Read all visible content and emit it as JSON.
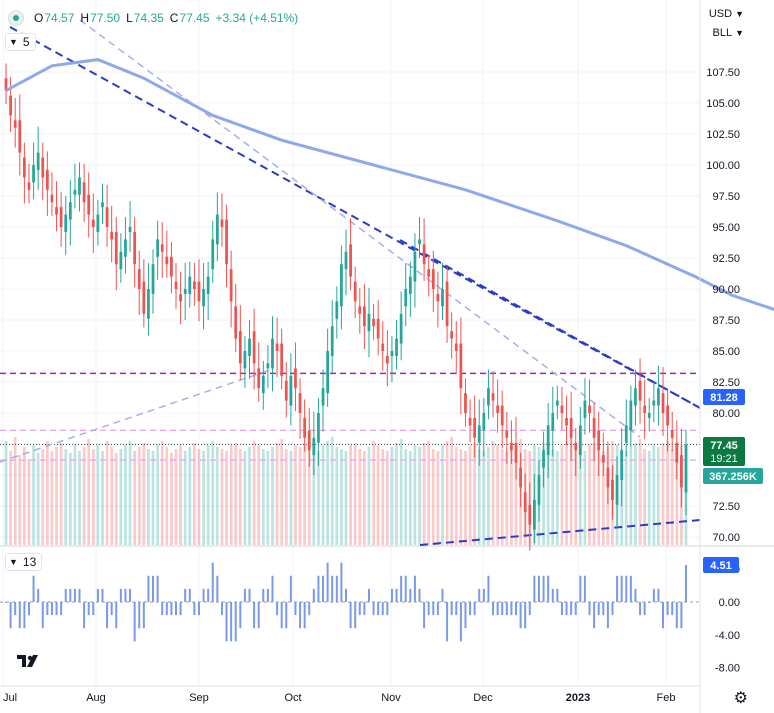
{
  "header": {
    "open_label": "O",
    "open": "74.57",
    "high_label": "H",
    "high": "77.50",
    "low_label": "L",
    "low": "74.35",
    "close_label": "C",
    "close": "77.45",
    "change": "+3.34 (+4.51%)"
  },
  "currency": "USD",
  "unit": "BLL",
  "main_indicator": {
    "label": "5"
  },
  "lower_indicator": {
    "label": "13"
  },
  "price_badges": {
    "last_price": "77.45",
    "countdown": "19:21",
    "volume": "367.256K",
    "ma_value": "81.28",
    "indicator_value": "4.51"
  },
  "colors": {
    "up": "#26a69a",
    "down": "#ef5350",
    "ma": "#8fa8ec",
    "trendline": "#2b3cc6",
    "hline": "#9c27b0",
    "last_price": "#0a7a42"
  },
  "icons": [
    "chevron-down-icon",
    "gear-icon",
    "tradingview-logo-icon"
  ],
  "chart_data": [
    {
      "type": "candlestick",
      "y_ticks": [
        "70.00",
        "72.50",
        "75.00",
        "77.50",
        "80.00",
        "82.50",
        "85.00",
        "87.50",
        "90.00",
        "92.50",
        "95.00",
        "97.50",
        "100.00",
        "102.50",
        "105.00",
        "107.50"
      ],
      "x_ticks": [
        "Jul",
        "Aug",
        "Sep",
        "Oct",
        "Nov",
        "Dec",
        "2023",
        "Feb"
      ],
      "ylim": [
        69.5,
        111
      ],
      "close_series": [
        106,
        104,
        103,
        101,
        99,
        98,
        100,
        101,
        99,
        98,
        97,
        96,
        95,
        96,
        97,
        98,
        99,
        97,
        96,
        95,
        96,
        97,
        95,
        94,
        92,
        93,
        94,
        95,
        92,
        90,
        88,
        90,
        92,
        94,
        93,
        92,
        91,
        90,
        89,
        90,
        91,
        90,
        89,
        90,
        91,
        94,
        96,
        95,
        92,
        89,
        86,
        84,
        85,
        86,
        84,
        82,
        83,
        84,
        86,
        85,
        83,
        81,
        83,
        82,
        80,
        78,
        77,
        78,
        80,
        82,
        85,
        87,
        89,
        92,
        93,
        91,
        89,
        88,
        87,
        88,
        87,
        86,
        85,
        84,
        85,
        86,
        88,
        90,
        91,
        93,
        94,
        92,
        91,
        90,
        89,
        90,
        87,
        86,
        85,
        82,
        80,
        79,
        78,
        79,
        80,
        82,
        81,
        80,
        79,
        78,
        77,
        76,
        74,
        72,
        71,
        73,
        75,
        77,
        79,
        80,
        81,
        80,
        79,
        78,
        77,
        79,
        81,
        80,
        78,
        77,
        76,
        74,
        73,
        75,
        77,
        79,
        81,
        82,
        81,
        80,
        80,
        81,
        82,
        80,
        79,
        78,
        76,
        74,
        77.45
      ],
      "volume_k": [
        520,
        470,
        540,
        450,
        490,
        430,
        500,
        460,
        480,
        520,
        470,
        490,
        510,
        480,
        460,
        500,
        470,
        490,
        530,
        480,
        500,
        470,
        520,
        490,
        460,
        480,
        500,
        520,
        470,
        490,
        510,
        480,
        470,
        500,
        520,
        490,
        460,
        480,
        500,
        470,
        490,
        510,
        480,
        470,
        500,
        520,
        490,
        480,
        470,
        500,
        510,
        480,
        470,
        490,
        520,
        500,
        480,
        470,
        490,
        510,
        530,
        480,
        470,
        500,
        490,
        510,
        520,
        480,
        470,
        500,
        520,
        540,
        490,
        480,
        470,
        500,
        510,
        480,
        470,
        490,
        520,
        500,
        480,
        470,
        490,
        510,
        530,
        480,
        470,
        500,
        490,
        510,
        520,
        480,
        470,
        500,
        520,
        540,
        490,
        480,
        470,
        500,
        510,
        480,
        470,
        490,
        520,
        500,
        480,
        470,
        490,
        510,
        530,
        480,
        470,
        500,
        490,
        510,
        520,
        480,
        470,
        500,
        520,
        540,
        490,
        480,
        470,
        500,
        510,
        480,
        470,
        490,
        520,
        500,
        480,
        470,
        490,
        510,
        530,
        480,
        470,
        500,
        490,
        510,
        520,
        480,
        470,
        500,
        367
      ],
      "moving_average": [
        [
          0,
          106
        ],
        [
          10,
          108
        ],
        [
          20,
          108.5
        ],
        [
          30,
          107
        ],
        [
          45,
          104
        ],
        [
          60,
          102
        ],
        [
          80,
          100
        ],
        [
          100,
          98
        ],
        [
          120,
          95.5
        ],
        [
          135,
          93.5
        ],
        [
          150,
          91
        ],
        [
          158,
          89.5
        ],
        [
          170,
          88
        ],
        [
          185,
          86
        ],
        [
          200,
          84
        ],
        [
          215,
          83.5
        ],
        [
          230,
          82.8
        ],
        [
          248,
          81.28
        ]
      ],
      "horizontal_levels": [
        83.2,
        78.6,
        76.2
      ]
    },
    {
      "type": "bar",
      "series_label": "13",
      "y_ticks": [
        "4.00",
        "0.00",
        "-4.00",
        "-8.00"
      ],
      "ylim": [
        -9,
        5.5
      ],
      "last_value": 4.51
    }
  ]
}
